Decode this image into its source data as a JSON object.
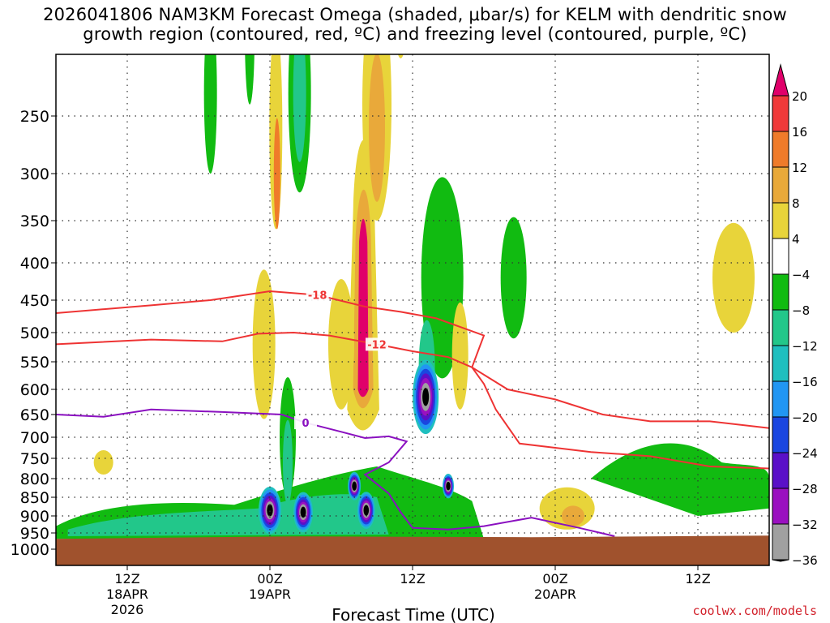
{
  "title": {
    "line1": "2026041806 NAM3KM Forecast Omega (shaded, μbar/s) for KELM with dendritic snow",
    "line2": "growth region (contoured, red, ºC) and freezing level (contoured, purple, ºC)"
  },
  "credit": "coolwx.com/models",
  "chart_data": {
    "type": "heatmap",
    "title": "2026041806 NAM3KM Forecast Omega (shaded, μbar/s) for KELM with dendritic snow growth region (contoured, red, ºC) and freezing level (contoured, purple, ºC)",
    "xlabel": "Forecast Time (UTC)",
    "ylabel": "",
    "x_range_hours": [
      0,
      60
    ],
    "x_ticks": [
      {
        "hour": 6,
        "label": "12Z",
        "label2": "18APR",
        "label3": "2026"
      },
      {
        "hour": 18,
        "label": "00Z",
        "label2": "19APR",
        "label3": ""
      },
      {
        "hour": 30,
        "label": "12Z",
        "label2": "",
        "label3": ""
      },
      {
        "hour": 42,
        "label": "00Z",
        "label2": "20APR",
        "label3": ""
      },
      {
        "hour": 54,
        "label": "12Z",
        "label2": "",
        "label3": ""
      }
    ],
    "y_axis": "pressure (hPa), reversed, log-like",
    "y_ticks": [
      250,
      300,
      350,
      400,
      450,
      500,
      550,
      600,
      650,
      700,
      750,
      800,
      850,
      900,
      950,
      1000
    ],
    "colorbar": {
      "units": "μbar/s",
      "labels": [
        "20",
        "16",
        "12",
        "8",
        "4",
        "−4",
        "−8",
        "−12",
        "−16",
        "−20",
        "−24",
        "−28",
        "−32",
        "−36"
      ],
      "colors": [
        "#e0006a",
        "#f03a3a",
        "#ef7b2a",
        "#e9a93a",
        "#e8d43a",
        "#ffffff",
        "#11bb11",
        "#22c78a",
        "#1fbfbf",
        "#2196f3",
        "#1a46e0",
        "#5a10c8",
        "#9a10c0",
        "#a0a0a0",
        "#000000"
      ]
    },
    "contours": {
      "dendritic_red": [
        {
          "label": "-18",
          "points": [
            [
              0,
              470
            ],
            [
              8,
              458
            ],
            [
              13,
              450
            ],
            [
              18,
              438
            ],
            [
              22,
              443
            ],
            [
              26,
              460
            ],
            [
              29,
              468
            ],
            [
              32,
              478
            ],
            [
              36,
              505
            ],
            [
              35,
              560
            ],
            [
              38,
              600
            ],
            [
              42,
              620
            ],
            [
              46,
              650
            ],
            [
              50,
              665
            ],
            [
              55,
              665
            ],
            [
              60,
              680
            ]
          ]
        },
        {
          "label": "-12",
          "points": [
            [
              0,
              520
            ],
            [
              8,
              512
            ],
            [
              14,
              515
            ],
            [
              17,
              502
            ],
            [
              20,
              500
            ],
            [
              23,
              505
            ],
            [
              27,
              520
            ],
            [
              30,
              532
            ],
            [
              33,
              542
            ],
            [
              35,
              560
            ],
            [
              36,
              590
            ],
            [
              37,
              640
            ],
            [
              39,
              715
            ],
            [
              42,
              725
            ],
            [
              45,
              735
            ],
            [
              50,
              745
            ],
            [
              55,
              770
            ],
            [
              60,
              775
            ]
          ]
        }
      ],
      "freezing_purple": [
        {
          "label": "0",
          "points": [
            [
              0,
              650
            ],
            [
              4,
              655
            ],
            [
              8,
              640
            ],
            [
              14,
              645
            ],
            [
              19,
              650
            ],
            [
              21,
              668
            ],
            [
              24,
              688
            ],
            [
              26,
              702
            ],
            [
              28,
              698
            ],
            [
              29.5,
              710
            ],
            [
              28,
              760
            ],
            [
              26,
              790
            ],
            [
              28,
              840
            ],
            [
              29,
              890
            ],
            [
              30,
              935
            ],
            [
              33,
              940
            ],
            [
              36,
              930
            ],
            [
              40,
              905
            ],
            [
              44,
              935
            ],
            [
              47,
              960
            ]
          ]
        }
      ]
    },
    "features": [
      {
        "kind": "descent_core",
        "x_hour": 25.8,
        "p_top": 375,
        "p_bottom": 600,
        "max_value": 20
      },
      {
        "kind": "ascent_core",
        "x_hour": 31.1,
        "p": 615,
        "min_value": -36
      },
      {
        "kind": "ascent_core",
        "x_hour": 18,
        "p": 885,
        "min_value": -32
      },
      {
        "kind": "ascent_core",
        "x_hour": 20.8,
        "p": 890,
        "min_value": -36
      },
      {
        "kind": "ascent_core",
        "x_hour": 26.1,
        "p": 885,
        "min_value": -28
      },
      {
        "kind": "ascent_band",
        "x_hours": [
          0,
          60
        ],
        "p_range": [
          860,
          960
        ],
        "value": -8
      }
    ],
    "terrain": {
      "p_top": 968,
      "color": "#a0522d"
    }
  }
}
